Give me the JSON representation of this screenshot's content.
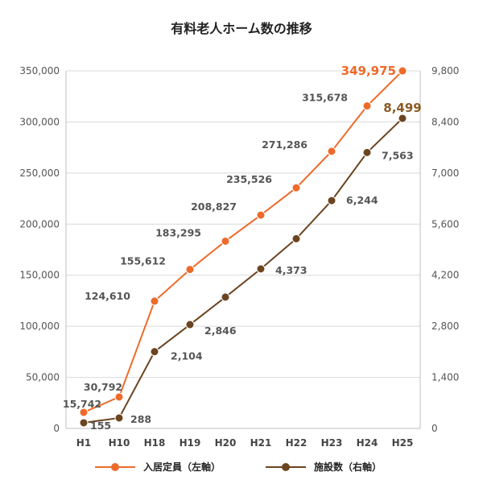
{
  "chart_data": {
    "type": "line",
    "title": "有料老人ホーム数の推移",
    "categories": [
      "H1",
      "H10",
      "H18",
      "H19",
      "H20",
      "H21",
      "H22",
      "H23",
      "H24",
      "H25"
    ],
    "series": [
      {
        "name": "入居定員（左軸）",
        "axis": "left",
        "color": "#ee6a2a",
        "values": [
          15742,
          30792,
          124610,
          155612,
          183295,
          208827,
          235526,
          271286,
          315678,
          349975
        ],
        "labels": [
          "15,742",
          "30,792",
          "124,610",
          "155,612",
          "183,295",
          "208,827",
          "235,526",
          "271,286",
          "315,678",
          "349,975"
        ]
      },
      {
        "name": "施設数（右軸）",
        "axis": "right",
        "color": "#6b4420",
        "values": [
          155,
          288,
          2104,
          2846,
          3600,
          4373,
          5200,
          6244,
          7563,
          8499
        ],
        "labels": [
          "155",
          "288",
          "2,104",
          "2,846",
          "",
          "4,373",
          "",
          "6,244",
          "7,563",
          "8,499"
        ]
      }
    ],
    "left_axis": {
      "ylim": [
        0,
        350000
      ],
      "ticks": [
        "0",
        "50,000",
        "100,000",
        "150,000",
        "200,000",
        "250,000",
        "300,000",
        "350,000"
      ]
    },
    "right_axis": {
      "ylim": [
        0,
        9800
      ],
      "ticks": [
        "0",
        "1,400",
        "2,800",
        "4,200",
        "5,600",
        "7,000",
        "8,400",
        "9,800"
      ]
    },
    "grid": true,
    "legend_position": "bottom",
    "highlight_colors": {
      "orange": "#ee6a2a",
      "brown": "#8b5a24",
      "line_brown": "#6b4420"
    }
  }
}
